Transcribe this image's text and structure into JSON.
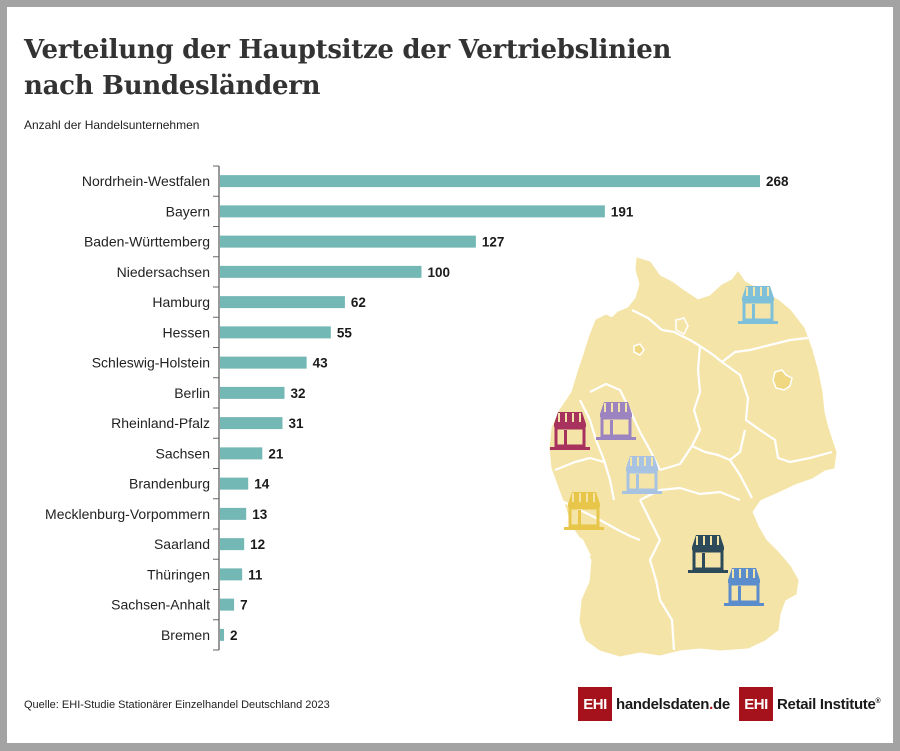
{
  "title": "Verteilung der Hauptsitze der Vertriebslinien nach Bundesländern",
  "subtitle": "Anzahl der Handelsunternehmen",
  "source": "Quelle: EHI-Studie Stationärer Einzelhandel Deutschland 2023",
  "logos": {
    "logo1_box": "EHI",
    "logo1_text_main": "handelsdaten",
    "logo1_text_dot": ".",
    "logo1_text_tld": "de",
    "logo2_box": "EHI",
    "logo2_text": "Retail Institute",
    "logo2_reg": "®"
  },
  "colors": {
    "bar": "#74b8b5",
    "map_fill": "#f5e4a8",
    "map_border": "#ffffff",
    "logo_red": "#a5121b"
  },
  "map": {
    "store_icons": [
      {
        "region": "Mecklenburg-Vorpommern",
        "color": "#7ec0da"
      },
      {
        "region": "Nordrhein-Westfalen",
        "color": "#a8325e"
      },
      {
        "region": "Nordrhein-Westfalen (East)",
        "color": "#9b84c0"
      },
      {
        "region": "Hessen",
        "color": "#a8c3e2"
      },
      {
        "region": "Rheinland-Pfalz",
        "color": "#e8c64a"
      },
      {
        "region": "Bayern (North)",
        "color": "#2d4a5a"
      },
      {
        "region": "Bayern (South)",
        "color": "#5b8ccc"
      }
    ]
  },
  "chart_data": {
    "type": "bar",
    "orientation": "horizontal",
    "title": "Verteilung der Hauptsitze der Vertriebslinien nach Bundesländern",
    "xlabel": "",
    "ylabel": "Anzahl der Handelsunternehmen",
    "categories": [
      "Nordrhein-Westfalen",
      "Bayern",
      "Baden-Württemberg",
      "Niedersachsen",
      "Hamburg",
      "Hessen",
      "Schleswig-Holstein",
      "Berlin",
      "Rheinland-Pfalz",
      "Sachsen",
      "Brandenburg",
      "Mecklenburg-Vorpommern",
      "Saarland",
      "Thüringen",
      "Sachsen-Anhalt",
      "Bremen"
    ],
    "values": [
      268,
      191,
      127,
      100,
      62,
      55,
      43,
      32,
      31,
      21,
      14,
      13,
      12,
      11,
      7,
      2
    ],
    "xlim": [
      0,
      268
    ],
    "grid": false,
    "data_labels": true
  }
}
